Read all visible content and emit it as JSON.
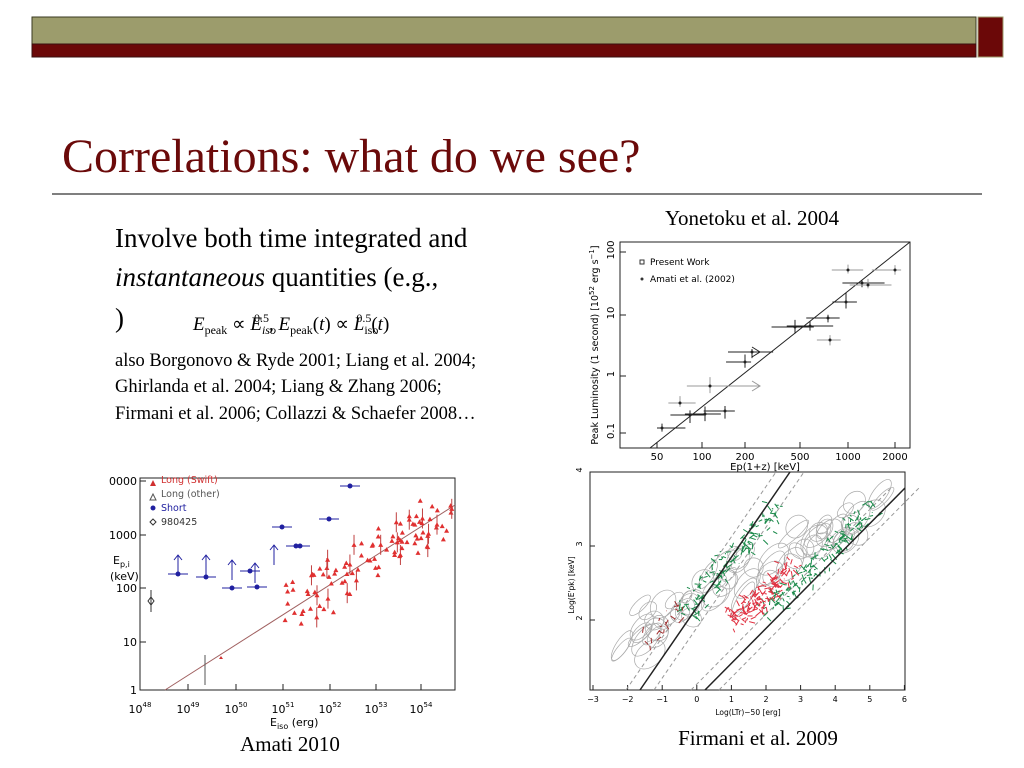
{
  "title": "Correlations: what do we see?",
  "body": {
    "line1": "Involve both time integrated and",
    "line2_italic": "instantaneous",
    "line2_rest": " quantities (e.g.,",
    "line3": ")",
    "formula": [
      "E",
      "peak",
      " ∝ ",
      "E",
      "iso",
      "0.5",
      ", ",
      "E",
      "peak",
      "(",
      "t",
      ") ∝ ",
      "L",
      "iso",
      "0.5",
      "(",
      "t",
      ")"
    ],
    "refs": [
      "also Borgonovo & Ryde 2001; Liang et al. 2004;",
      "Ghirlanda et al. 2004; Liang & Zhang 2006;",
      "Firmani et al. 2006; Collazzi & Schaefer 2008…"
    ]
  },
  "figures": {
    "yonetoku": {
      "caption": "Yonetoku et al. 2004",
      "ylabel": [
        "Peak Luminosity (1 second) [10",
        "52",
        " erg s",
        "−1",
        "]"
      ],
      "xlabel": "Ep(1+z) [keV]",
      "xticks": [
        "50",
        "100",
        "200",
        "500",
        "1000",
        "2000"
      ],
      "yticks": [
        "0.1",
        "1",
        "10",
        "100"
      ],
      "legend": [
        "Present Work",
        "Amati et al. (2002)"
      ]
    },
    "amati": {
      "caption": "Amati 2010",
      "ylabel": [
        "E",
        "p,i",
        "(keV)"
      ],
      "xlabel": [
        "E",
        "iso",
        " (erg)"
      ],
      "yticks": [
        "1",
        "10",
        "100",
        "1000",
        "0000"
      ],
      "xticks": [
        [
          "10",
          "48"
        ],
        [
          "10",
          "49"
        ],
        [
          "10",
          "50"
        ],
        [
          "10",
          "51"
        ],
        [
          "10",
          "52"
        ],
        [
          "10",
          "53"
        ],
        [
          "10",
          "54"
        ]
      ],
      "legend": [
        "Long (Swift)",
        "Long (other)",
        "Short",
        "980425"
      ]
    },
    "firmani": {
      "caption": "Firmani et al. 2009",
      "ylabel": "Log(E'pk) [keV]",
      "xlabel": "Log(LTr)−50 [erg]",
      "xticks": [
        "−3",
        "−2",
        "−1",
        "0",
        "1",
        "2",
        "3",
        "4",
        "5",
        "6"
      ],
      "yticks": [
        "2",
        "3",
        "4"
      ]
    }
  }
}
